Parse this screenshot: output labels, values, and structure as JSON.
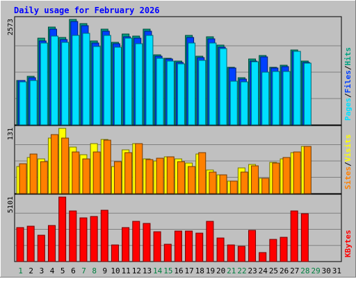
{
  "chart_data": {
    "type": "bar",
    "title": "Daily usage for February 2026",
    "categories": [
      "1",
      "2",
      "3",
      "4",
      "5",
      "6",
      "7",
      "8",
      "9",
      "10",
      "11",
      "12",
      "13",
      "14",
      "15",
      "16",
      "17",
      "18",
      "19",
      "20",
      "21",
      "22",
      "23",
      "24",
      "25",
      "26",
      "27",
      "28",
      "29",
      "30",
      "31"
    ],
    "weekend_days": [
      "1",
      "7",
      "8",
      "14",
      "15",
      "21",
      "22",
      "28",
      "29"
    ],
    "panels": [
      {
        "id": "hits",
        "ymax_label": "2573",
        "ymax": 2573,
        "legend": [
          "Pages",
          "/",
          "Files",
          "/",
          "Hits"
        ],
        "legend_colors": [
          "#00e0ff",
          "#000000",
          "#0040ff",
          "#000000",
          "#00a080"
        ],
        "series": [
          {
            "name": "Hits",
            "color": "#009c80",
            "values": [
              1090,
              1190,
              2110,
              2390,
              2130,
              2573,
              2475,
              2040,
              2340,
              2020,
              2210,
              2170,
              2330,
              1710,
              1630,
              1550,
              2180,
              1680,
              2150,
              1950,
              1400,
              1150,
              1600,
              1700,
              1400,
              1460,
              1830,
              1560,
              0,
              0,
              0
            ]
          },
          {
            "name": "Files",
            "color": "#0040ff",
            "values": [
              1080,
              1150,
              2050,
              2330,
              2080,
              2520,
              2420,
              1990,
              2280,
              1980,
              2150,
              2110,
              2280,
              1670,
              1600,
              1530,
              2130,
              1650,
              2100,
              1900,
              1380,
              1120,
              1560,
              1660,
              1380,
              1430,
              1800,
              1530,
              0,
              0,
              0
            ]
          },
          {
            "name": "Pages",
            "color": "#00e0ff",
            "values": [
              1050,
              1080,
              1990,
              2170,
              2010,
              2190,
              2230,
              1920,
              2190,
              1900,
              2110,
              1980,
              2180,
              1630,
              1560,
              1490,
              1990,
              1580,
              2000,
              1860,
              1060,
              1050,
              1540,
              1290,
              1300,
              1300,
              1790,
              1500,
              0,
              0,
              0
            ]
          }
        ]
      },
      {
        "id": "visits",
        "ymax_label": "131",
        "ymax": 131,
        "legend": [
          "Sites",
          "/",
          "Visits"
        ],
        "legend_colors": [
          "#ff8000",
          "#000000",
          "#ffff00"
        ],
        "series": [
          {
            "name": "Visits",
            "color": "#ffff00",
            "values": [
              54,
              73,
              69,
              112,
              131,
              93,
              78,
              100,
              109,
              55,
              88,
              101,
              69,
              66,
              74,
              69,
              61,
              80,
              48,
              37,
              25,
              51,
              59,
              30,
              63,
              69,
              82,
              95,
              0,
              0,
              0
            ]
          },
          {
            "name": "Sites",
            "color": "#ff8000",
            "values": [
              60,
              80,
              64,
              118,
              112,
              83,
              69,
              84,
              107,
              64,
              82,
              100,
              68,
              71,
              74,
              64,
              54,
              82,
              43,
              37,
              25,
              43,
              56,
              30,
              62,
              73,
              84,
              95,
              0,
              0,
              0
            ]
          }
        ]
      },
      {
        "id": "kbytes",
        "ymax_label": "5101",
        "ymax": 5101,
        "legend": [
          "KBytes"
        ],
        "legend_colors": [
          "#ff0000"
        ],
        "series": [
          {
            "name": "KBytes",
            "color": "#ff0000",
            "values": [
              2680,
              2800,
              2110,
              2830,
              5101,
              3980,
              3460,
              3590,
              4080,
              1310,
              2710,
              3170,
              3030,
              2340,
              1350,
              2410,
              2420,
              2270,
              3200,
              1890,
              1310,
              1210,
              2480,
              690,
              1740,
              1900,
              4030,
              3800,
              0,
              0,
              0
            ]
          }
        ]
      }
    ]
  }
}
